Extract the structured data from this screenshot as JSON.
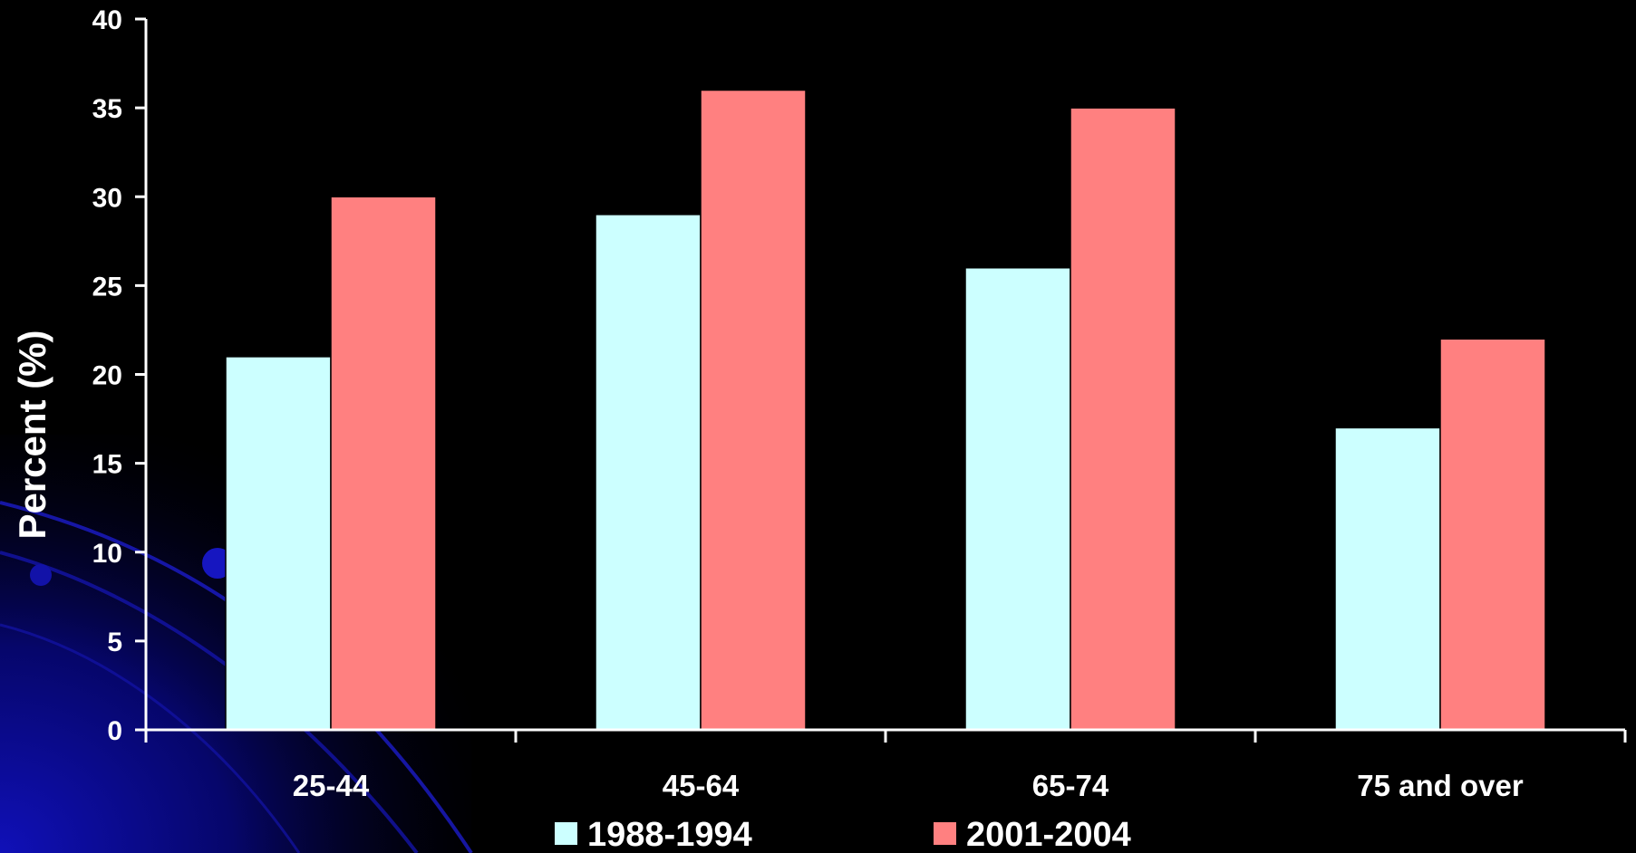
{
  "chart_data": {
    "type": "bar",
    "title": "",
    "xlabel": "",
    "ylabel": "Percent (%)",
    "categories": [
      "25-44",
      "45-64",
      "65-74",
      "75 and over"
    ],
    "series": [
      {
        "name": "1988-1994",
        "values": [
          21,
          29,
          26,
          17
        ]
      },
      {
        "name": "2001-2004",
        "values": [
          30,
          36,
          35,
          22
        ]
      }
    ],
    "ylim": [
      0,
      40
    ],
    "yticks": [
      0,
      5,
      10,
      15,
      20,
      25,
      30,
      35,
      40
    ],
    "grid": false,
    "legend_position": "bottom",
    "colors": {
      "background": "#000000",
      "series_1988_1994": "#CCFFFF",
      "series_2001_2004": "#FF8080",
      "axis": "#FFFFFF",
      "decoration": "#0a0aa0"
    }
  }
}
